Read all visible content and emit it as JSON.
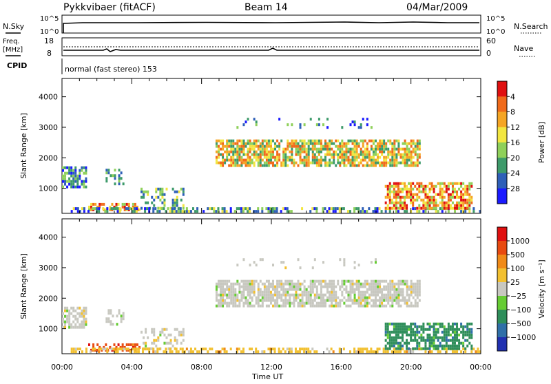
{
  "header": {
    "station": "Pykkvibaer (fitACF)",
    "beam": "Beam 14",
    "date": "04/Mar/2009"
  },
  "strips": {
    "nsky_label": "N.Sky",
    "nsearch_label": "N.Search",
    "freq_label_1": "Freq.",
    "freq_label_2": "[MHz]",
    "nave_label": "Nave",
    "cpid_label": "CPID",
    "cpid_value": "normal (fast stereo) 153",
    "noise_ticks_top": "10^5",
    "noise_ticks_bottom": "10^0",
    "freq_ticks": [
      "18",
      "8"
    ],
    "nave_ticks": [
      "60",
      "0"
    ]
  },
  "chart_data": [
    {
      "type": "heatmap",
      "title": "",
      "xlabel": "Time UT",
      "ylabel": "Slant Range [km]",
      "x_ticks": [
        "00:00",
        "04:00",
        "08:00",
        "12:00",
        "16:00",
        "20:00",
        "00:00"
      ],
      "x_range_hours": [
        0,
        24
      ],
      "y_range_km": [
        180,
        4600
      ],
      "y_ticks": [
        "1000",
        "2000",
        "3000",
        "4000"
      ],
      "colorbar": {
        "label": "Power [dB]",
        "ticks": [
          "4",
          "8",
          "12",
          "16",
          "20",
          "24",
          "28"
        ],
        "colors": [
          "#1a1aff",
          "#2e5fb8",
          "#3d9a6a",
          "#8fd05a",
          "#f2e640",
          "#f5a524",
          "#f06a1a",
          "#e01010"
        ]
      }
    },
    {
      "type": "heatmap",
      "title": "",
      "xlabel": "Time UT",
      "ylabel": "Slant Range [km]",
      "x_ticks": [
        "00:00",
        "04:00",
        "08:00",
        "12:00",
        "16:00",
        "20:00",
        "00:00"
      ],
      "x_range_hours": [
        0,
        24
      ],
      "y_range_km": [
        180,
        4600
      ],
      "y_ticks": [
        "1000",
        "2000",
        "3000",
        "4000"
      ],
      "colorbar": {
        "label": "Velocity [m s⁻¹]",
        "ticks": [
          "1000",
          "500",
          "100",
          "25",
          "−25",
          "−100",
          "−500",
          "−1000"
        ],
        "colors": [
          "#2030b0",
          "#2f6fa8",
          "#2e8e5a",
          "#66cc33",
          "#c8c8c0",
          "#f2c030",
          "#f08a18",
          "#e84a10",
          "#e01010"
        ]
      }
    }
  ],
  "footer": {
    "time_axis_label": "Time UT"
  }
}
